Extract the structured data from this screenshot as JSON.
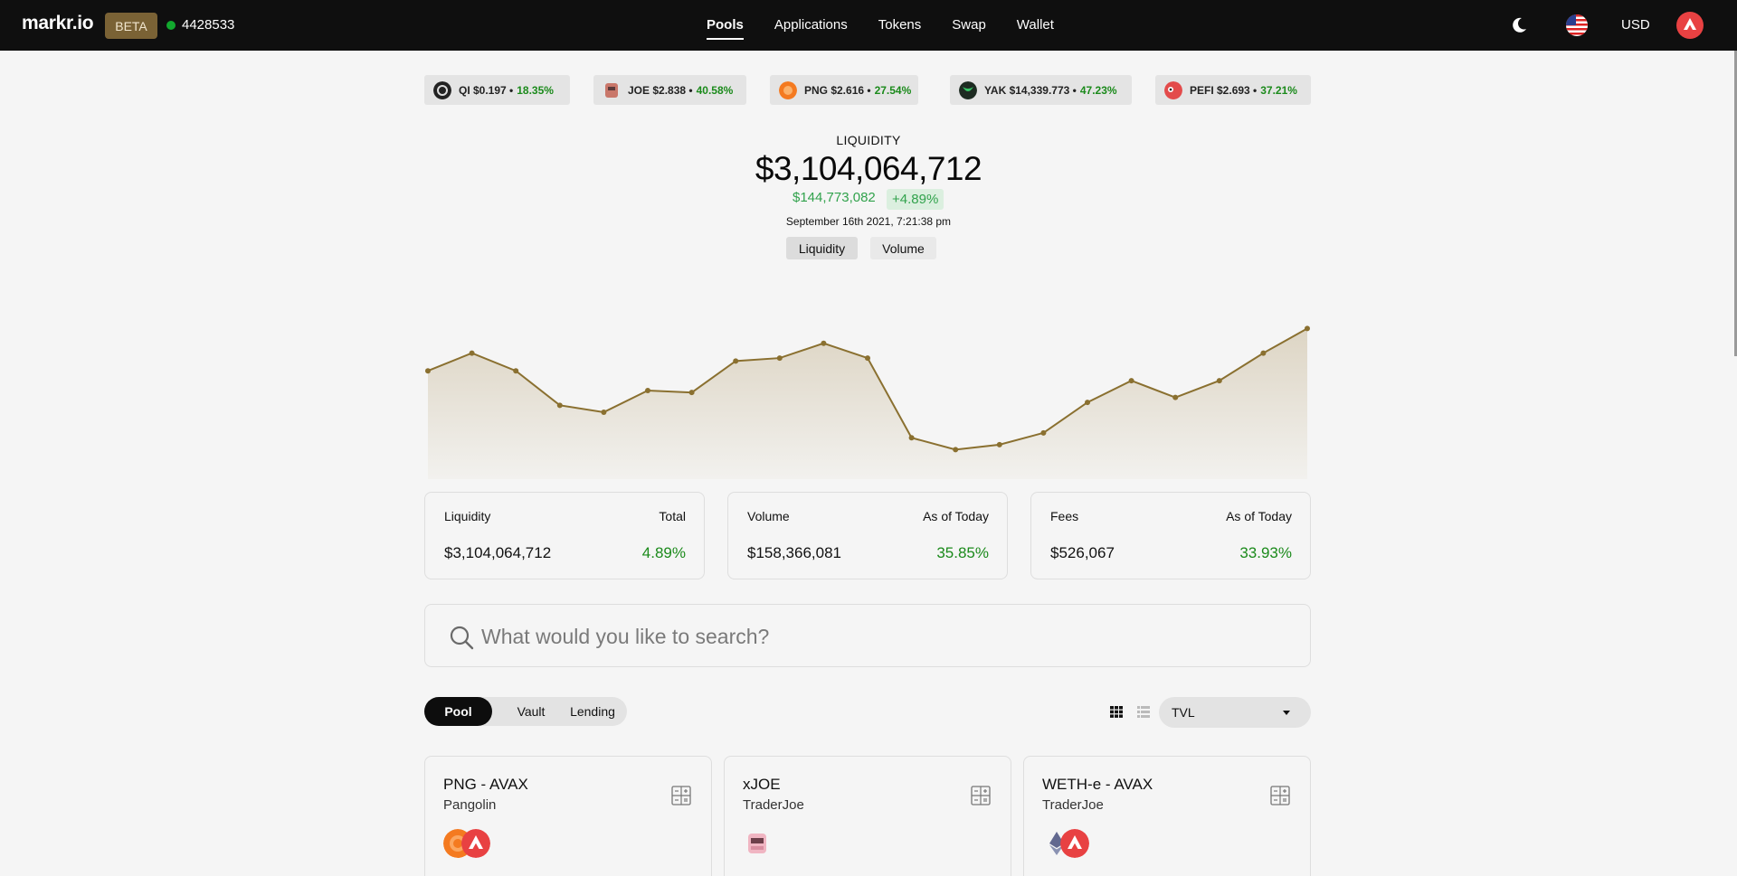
{
  "header": {
    "brand": "markr.io",
    "beta_label": "BETA",
    "block_number": "4428533",
    "nav": [
      "Pools",
      "Applications",
      "Tokens",
      "Swap",
      "Wallet"
    ],
    "currency": "USD"
  },
  "ticker": [
    {
      "text": "QI $0.197 •",
      "pct": "18.35%"
    },
    {
      "text": "JOE $2.838 •",
      "pct": "40.58%"
    },
    {
      "text": "PNG $2.616 •",
      "pct": "27.54%"
    },
    {
      "text": "YAK $14,339.773 •",
      "pct": "47.23%"
    },
    {
      "text": "PEFI $2.693 •",
      "pct": "37.21%"
    }
  ],
  "hero": {
    "label": "LIQUIDITY",
    "value": "$3,104,064,712",
    "change": "$144,773,082",
    "change_pct": "+4.89%",
    "date": "September 16th 2021, 7:21:38 pm",
    "toggle_liquidity": "Liquidity",
    "toggle_volume": "Volume"
  },
  "chart_data": {
    "type": "area",
    "values": [
      110,
      128,
      110,
      75,
      68,
      90,
      88,
      120,
      123,
      138,
      123,
      42,
      30,
      35,
      47,
      78,
      100,
      83,
      100,
      128,
      153
    ],
    "ylim": [
      0,
      180
    ],
    "grid": false,
    "color": "#8a7030"
  },
  "stats": [
    {
      "label": "Liquidity",
      "sub": "Total",
      "value": "$3,104,064,712",
      "pct": "4.89%"
    },
    {
      "label": "Volume",
      "sub": "As of Today",
      "value": "$158,366,081",
      "pct": "35.85%"
    },
    {
      "label": "Fees",
      "sub": "As of Today",
      "value": "$526,067",
      "pct": "33.93%"
    }
  ],
  "search": {
    "placeholder": "What would you like to search?"
  },
  "filters": {
    "tabs": [
      "Pool",
      "Vault",
      "Lending"
    ],
    "sort_value": "TVL"
  },
  "pools": [
    {
      "name": "PNG - AVAX",
      "dex": "Pangolin"
    },
    {
      "name": "xJOE",
      "dex": "TraderJoe"
    },
    {
      "name": "WETH-e - AVAX",
      "dex": "TraderJoe"
    }
  ]
}
